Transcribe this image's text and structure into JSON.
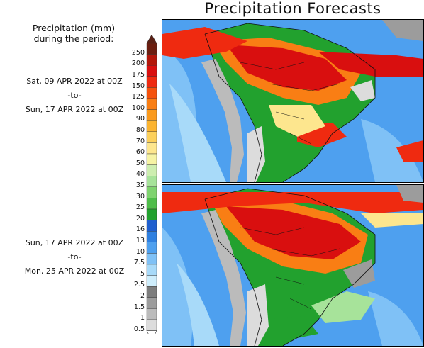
{
  "title": "Precipitation Forecasts",
  "legend": {
    "heading_line1": "Precipitation (mm)",
    "heading_line2": "during the period:",
    "levels": [
      "250",
      "200",
      "175",
      "150",
      "125",
      "100",
      "90",
      "80",
      "70",
      "60",
      "50",
      "40",
      "35",
      "30",
      "25",
      "20",
      "16",
      "13",
      "10",
      "7.5",
      "5",
      "2.5",
      "2",
      "1.5",
      "1",
      "0.5"
    ],
    "colors": [
      "#6b1e10",
      "#b3170a",
      "#d90f0f",
      "#ef2a10",
      "#f5520d",
      "#f97e14",
      "#fa9a1d",
      "#fbb430",
      "#fcd05b",
      "#fde68e",
      "#f6f3a4",
      "#cdeeb0",
      "#a7e39a",
      "#7fd36f",
      "#4fbd4a",
      "#22a12e",
      "#1f5fcf",
      "#2f80e0",
      "#4ea0ef",
      "#7fc1f6",
      "#a8daf9",
      "#cfeefc",
      "#7d7d7d",
      "#9c9c9c",
      "#bbbbbb",
      "#dcdcdc"
    ]
  },
  "periods": [
    {
      "start": "Sat, 09 APR 2022 at 00Z",
      "sep": "-to-",
      "end": "Sun, 17 APR 2022 at 00Z"
    },
    {
      "start": "Sun, 17 APR 2022 at 00Z",
      "sep": "-to-",
      "end": "Mon, 25 APR 2022 at 00Z"
    }
  ]
}
